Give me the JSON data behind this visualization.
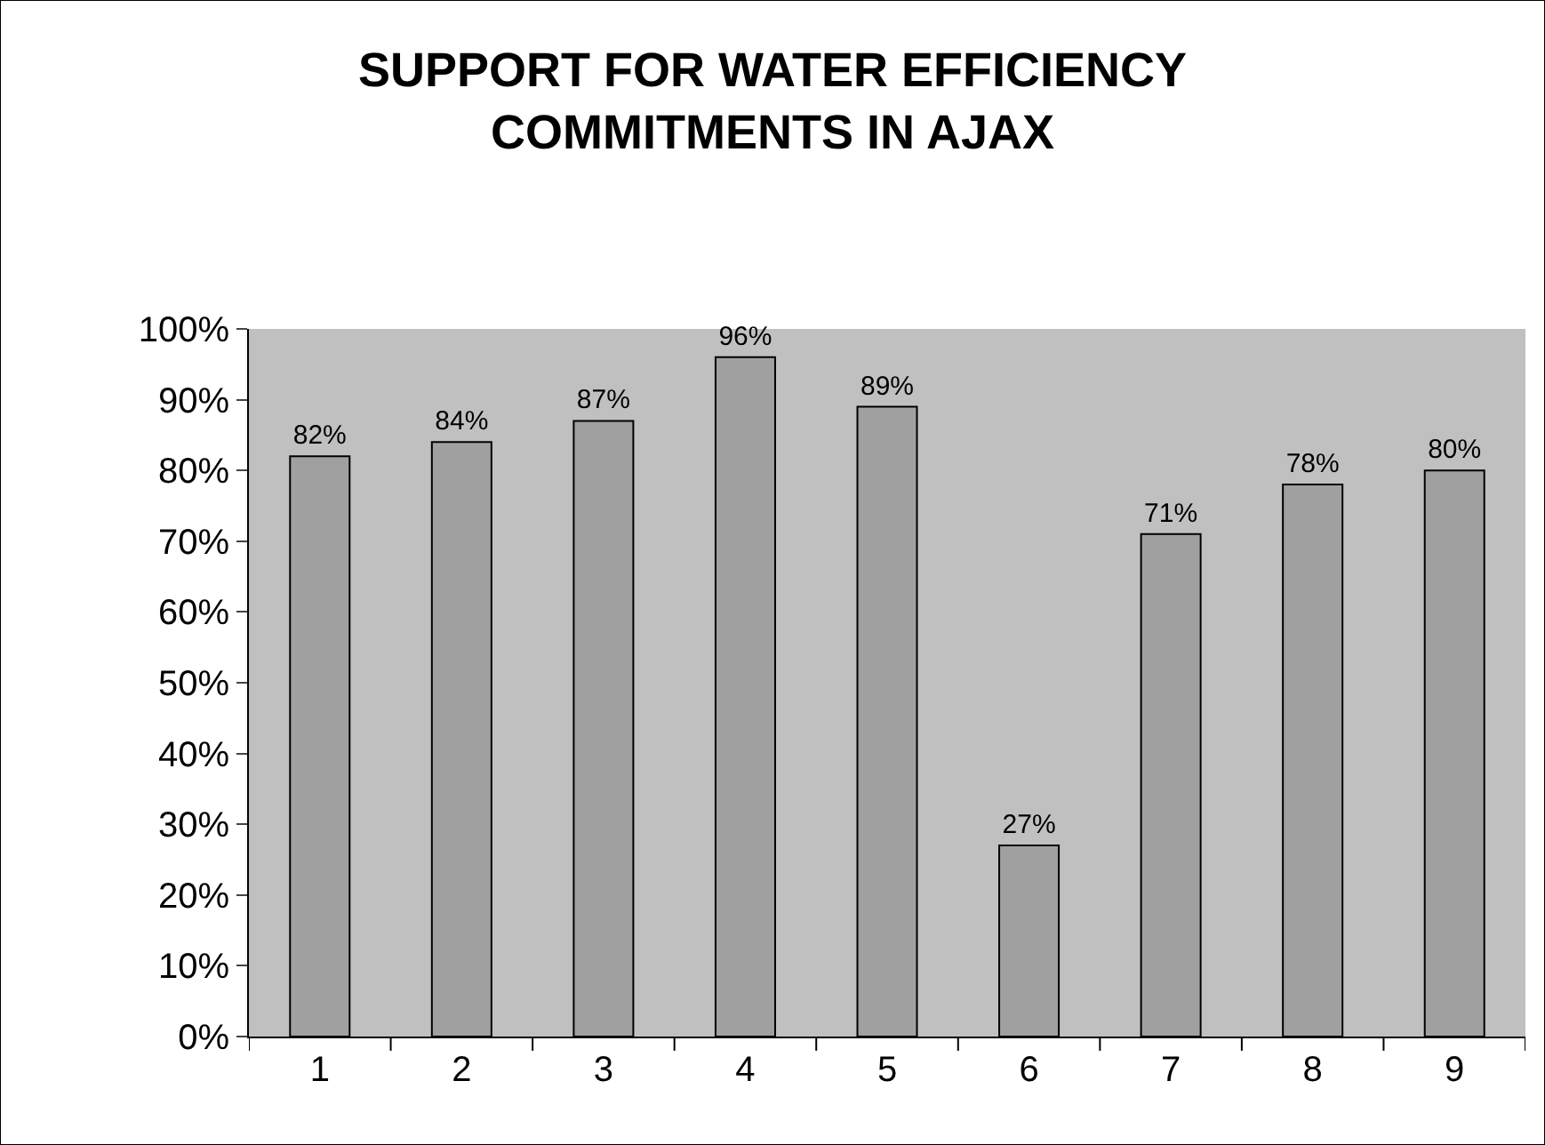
{
  "chart_data": {
    "type": "bar",
    "title": "SUPPORT FOR WATER EFFICIENCY\nCOMMITMENTS IN AJAX",
    "categories": [
      "1",
      "2",
      "3",
      "4",
      "5",
      "6",
      "7",
      "8",
      "9"
    ],
    "values": [
      82,
      84,
      87,
      96,
      89,
      27,
      71,
      78,
      80
    ],
    "color": "#a0a0a0",
    "ylim": [
      0,
      100
    ],
    "yticks": [
      {
        "value": 0,
        "label": "0%"
      },
      {
        "value": 10,
        "label": "10%"
      },
      {
        "value": 20,
        "label": "20%"
      },
      {
        "value": 30,
        "label": "30%"
      },
      {
        "value": 40,
        "label": "40%"
      },
      {
        "value": 50,
        "label": "50%"
      },
      {
        "value": 60,
        "label": "60%"
      },
      {
        "value": 70,
        "label": "70%"
      },
      {
        "value": 80,
        "label": "80%"
      },
      {
        "value": 90,
        "label": "90%"
      },
      {
        "value": 100,
        "label": "100%"
      }
    ],
    "value_labels": [
      "82%",
      "84%",
      "87%",
      "96%",
      "89%",
      "27%",
      "71%",
      "78%",
      "80%"
    ],
    "grid": false
  }
}
